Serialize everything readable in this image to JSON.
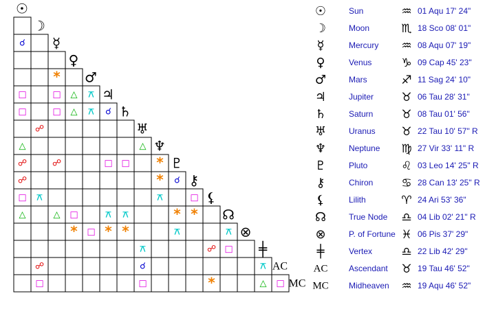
{
  "bodies": [
    {
      "glyph": "☉",
      "name": "Sun",
      "sign": "♒",
      "position": "01 Aqu 17' 24\""
    },
    {
      "glyph": "☽",
      "name": "Moon",
      "sign": "♏",
      "position": "18 Sco 08' 01\""
    },
    {
      "glyph": "☿",
      "name": "Mercury",
      "sign": "♒",
      "position": "08 Aqu 07' 19\""
    },
    {
      "glyph": "♀",
      "name": "Venus",
      "sign": "♑",
      "position": "09 Cap 45' 23\""
    },
    {
      "glyph": "♂",
      "name": "Mars",
      "sign": "♐",
      "position": "11 Sag 24' 10\""
    },
    {
      "glyph": "♃",
      "name": "Jupiter",
      "sign": "♉",
      "position": "06 Tau 28' 31\""
    },
    {
      "glyph": "♄",
      "name": "Saturn",
      "sign": "♉",
      "position": "08 Tau 01' 56\""
    },
    {
      "glyph": "♅",
      "name": "Uranus",
      "sign": "♉",
      "position": "22 Tau 10' 57\" R"
    },
    {
      "glyph": "♆",
      "name": "Neptune",
      "sign": "♍",
      "position": "27 Vir 33' 11\" R"
    },
    {
      "glyph": "♇",
      "name": "Pluto",
      "sign": "♌",
      "position": "03 Leo 14' 25\" R"
    },
    {
      "glyph": "⚷",
      "name": "Chiron",
      "sign": "♋",
      "position": "28 Can 13' 25\" R"
    },
    {
      "glyph": "⚸",
      "name": "Lilith",
      "sign": "♈",
      "position": "24 Ari 53' 36\""
    },
    {
      "glyph": "☊",
      "name": "True Node",
      "sign": "♎",
      "position": "04 Lib 02' 21\" R"
    },
    {
      "glyph": "⊗",
      "name": "P. of Fortune",
      "sign": "♓",
      "position": "06 Pis 37' 29\""
    },
    {
      "glyph": "╪",
      "name": "Vertex",
      "sign": "♎",
      "position": "22 Lib 42' 29\""
    },
    {
      "glyph": "AC",
      "name": "Ascendant",
      "sign": "♉",
      "position": "19 Tau 46' 52\""
    },
    {
      "glyph": "MC",
      "name": "Midheaven",
      "sign": "♒",
      "position": "19 Aqu 46' 52\""
    }
  ],
  "aspect_colors": {
    "□": "#e000e0",
    "△": "#00b000",
    "*": "#f08000",
    "⚻": "#00c8c8",
    "☌": "#0000d0",
    "☍": "#e00000"
  },
  "aspects": [
    [
      null
    ],
    [
      "☌",
      null
    ],
    [
      null,
      null,
      null
    ],
    [
      null,
      null,
      "*",
      null
    ],
    [
      "□",
      null,
      "□",
      "△",
      "⚻"
    ],
    [
      "□",
      null,
      "□",
      "△",
      "⚻",
      "☌"
    ],
    [
      null,
      "☍",
      null,
      null,
      null,
      null,
      null
    ],
    [
      "△",
      null,
      null,
      null,
      null,
      null,
      null,
      "△"
    ],
    [
      "☍",
      null,
      "☍",
      null,
      null,
      "□",
      "□",
      null,
      "*"
    ],
    [
      "☍",
      null,
      null,
      null,
      null,
      null,
      null,
      null,
      "*",
      "☌"
    ],
    [
      "□",
      "⚻",
      null,
      null,
      null,
      null,
      null,
      null,
      "⚻",
      null,
      "□"
    ],
    [
      "△",
      null,
      "△",
      "□",
      null,
      "⚻",
      "⚻",
      null,
      null,
      "*",
      "*",
      null
    ],
    [
      null,
      null,
      null,
      "*",
      "□",
      "*",
      "*",
      null,
      null,
      "⚻",
      null,
      null,
      "⚻"
    ],
    [
      null,
      null,
      null,
      null,
      null,
      null,
      null,
      "⚻",
      null,
      null,
      null,
      "☍",
      "□",
      null
    ],
    [
      null,
      "☍",
      null,
      null,
      null,
      null,
      null,
      "☌",
      null,
      null,
      null,
      null,
      null,
      null,
      "⚻"
    ],
    [
      null,
      "□",
      null,
      null,
      null,
      null,
      null,
      "□",
      null,
      null,
      null,
      "*",
      null,
      null,
      "△",
      "□"
    ]
  ]
}
